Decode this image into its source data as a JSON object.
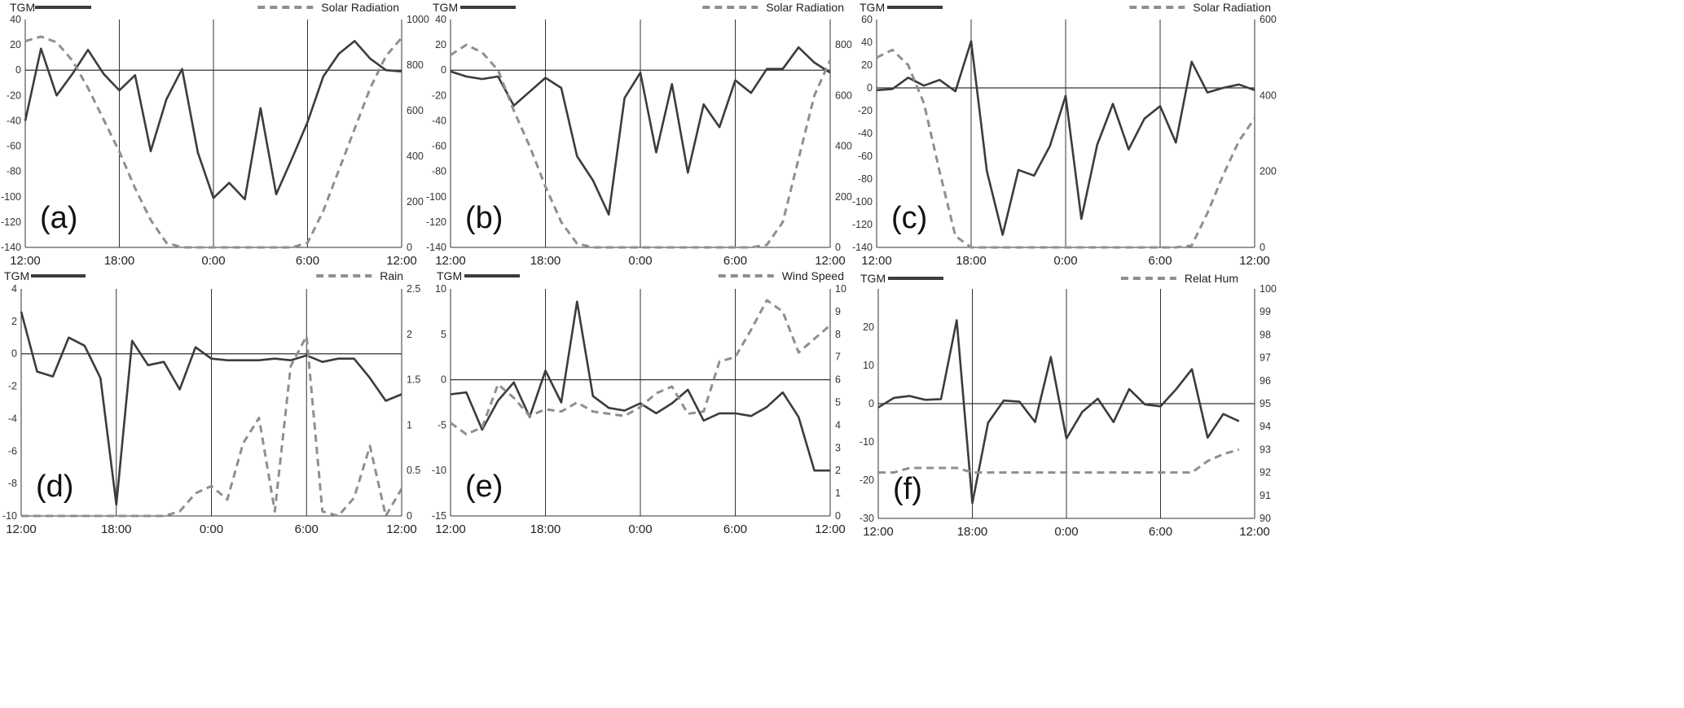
{
  "chart_data": [
    {
      "type": "line",
      "panel_label": "(a)",
      "x_ticks": [
        "12:00",
        "18:00",
        "0:00",
        "6:00",
        "12:00"
      ],
      "y_left": {
        "min": -140,
        "max": 40,
        "ticks": [
          "40",
          "20",
          "0",
          "-20",
          "-40",
          "-60",
          "-80",
          "-100",
          "-120",
          "-140"
        ]
      },
      "y_right": {
        "min": 0,
        "max": 1000,
        "ticks": [
          "1000",
          "800",
          "600",
          "400",
          "200",
          "0"
        ]
      },
      "series": [
        {
          "name": "TGM",
          "axis": "left",
          "style": "solid",
          "color": "#3c3c3c",
          "x": [
            0,
            1,
            2,
            3,
            4,
            5,
            6,
            7,
            8,
            9,
            10,
            11,
            12,
            13,
            14,
            15,
            16,
            17,
            18,
            19,
            20,
            21,
            22,
            23,
            24
          ],
          "values": [
            -40,
            17,
            -20,
            -3,
            16,
            -3,
            -16,
            -4,
            -64,
            -23,
            1,
            -65,
            -101,
            -89,
            -102,
            -30,
            -98,
            -70,
            -41,
            -5,
            13,
            23,
            9,
            0,
            -1
          ]
        },
        {
          "name": "Solar Radiation",
          "axis": "right",
          "style": "dashed",
          "color": "#8f8f8f",
          "x": [
            0,
            1,
            2,
            3,
            4,
            5,
            6,
            7,
            8,
            9,
            10,
            11,
            12,
            13,
            14,
            15,
            16,
            17,
            18,
            19,
            20,
            21,
            22,
            23,
            24
          ],
          "values": [
            905,
            925,
            900,
            820,
            700,
            560,
            420,
            260,
            120,
            20,
            0,
            0,
            0,
            0,
            0,
            0,
            0,
            0,
            20,
            160,
            340,
            520,
            700,
            840,
            920
          ]
        }
      ]
    },
    {
      "type": "line",
      "panel_label": "(b)",
      "x_ticks": [
        "12:00",
        "18:00",
        "0:00",
        "6:00",
        "12:00"
      ],
      "y_left": {
        "min": -140,
        "max": 40,
        "ticks": [
          "40",
          "20",
          "0",
          "-20",
          "-40",
          "-60",
          "-80",
          "-100",
          "-120",
          "-140"
        ]
      },
      "y_right": {
        "min": 0,
        "max": 900,
        "ticks": [
          "800",
          "600",
          "400",
          "200",
          "0"
        ]
      },
      "series": [
        {
          "name": "TGM",
          "axis": "left",
          "style": "solid",
          "color": "#3c3c3c",
          "x": [
            0,
            1,
            2,
            3,
            4,
            5,
            6,
            7,
            8,
            9,
            10,
            11,
            12,
            13,
            14,
            15,
            16,
            17,
            18,
            19,
            20,
            21,
            22,
            23,
            24
          ],
          "values": [
            -1,
            -5,
            -7,
            -5,
            -28,
            -17,
            -6,
            -14,
            -68,
            -87,
            -114,
            -22,
            -2,
            -65,
            -11,
            -81,
            -27,
            -45,
            -8,
            -18,
            1,
            1,
            18,
            6,
            -2
          ]
        },
        {
          "name": "Solar Radiation",
          "axis": "right",
          "style": "dashed",
          "color": "#8f8f8f",
          "x": [
            0,
            1,
            2,
            3,
            4,
            5,
            6,
            7,
            8,
            9,
            10,
            11,
            12,
            13,
            14,
            15,
            16,
            17,
            18,
            19,
            20,
            21,
            22,
            23,
            24
          ],
          "values": [
            760,
            800,
            770,
            700,
            540,
            400,
            240,
            100,
            15,
            0,
            0,
            0,
            0,
            0,
            0,
            0,
            0,
            0,
            0,
            0,
            10,
            100,
            350,
            600,
            740
          ]
        }
      ]
    },
    {
      "type": "line",
      "panel_label": "(c)",
      "x_ticks": [
        "12:00",
        "18:00",
        "0:00",
        "6:00",
        "12:00"
      ],
      "y_left": {
        "min": -140,
        "max": 60,
        "ticks": [
          "60",
          "40",
          "20",
          "0",
          "-20",
          "-40",
          "-60",
          "-80",
          "-100",
          "-120",
          "-140"
        ]
      },
      "y_right": {
        "min": 0,
        "max": 600,
        "ticks": [
          "600",
          "400",
          "200",
          "0"
        ]
      },
      "series": [
        {
          "name": "TGM",
          "axis": "left",
          "style": "solid",
          "color": "#3c3c3c",
          "x": [
            0,
            1,
            2,
            3,
            4,
            5,
            6,
            7,
            8,
            9,
            10,
            11,
            12,
            13,
            14,
            15,
            16,
            17,
            18,
            19,
            20,
            21,
            22,
            23,
            24
          ],
          "values": [
            -2,
            -1,
            9,
            2,
            7,
            -3,
            41,
            -73,
            -129,
            -72,
            -77,
            -51,
            -7,
            -115,
            -50,
            -14,
            -54,
            -27,
            -16,
            -48,
            23,
            -4,
            0,
            3,
            -2
          ]
        },
        {
          "name": "Solar Radiation",
          "axis": "right",
          "style": "dashed",
          "color": "#8f8f8f",
          "x": [
            0,
            1,
            2,
            3,
            4,
            5,
            6,
            7,
            8,
            9,
            10,
            11,
            12,
            13,
            14,
            15,
            16,
            17,
            18,
            19,
            20,
            21,
            22,
            23,
            24
          ],
          "values": [
            500,
            520,
            480,
            380,
            200,
            30,
            0,
            0,
            0,
            0,
            0,
            0,
            0,
            0,
            0,
            0,
            0,
            0,
            0,
            0,
            5,
            90,
            190,
            280,
            340
          ]
        }
      ]
    },
    {
      "type": "line",
      "panel_label": "(d)",
      "x_ticks": [
        "12:00",
        "18:00",
        "0:00",
        "6:00",
        "12:00"
      ],
      "y_left": {
        "min": -10,
        "max": 4,
        "ticks": [
          "4",
          "2",
          "0",
          "-2",
          "-4",
          "-6",
          "-8",
          "-10"
        ]
      },
      "y_right": {
        "min": 0,
        "max": 2.5,
        "ticks": [
          "2.5",
          "2",
          "1.5",
          "1",
          "0.5",
          "0"
        ]
      },
      "series": [
        {
          "name": "TGM",
          "axis": "left",
          "style": "solid",
          "color": "#3c3c3c",
          "x": [
            0,
            1,
            2,
            3,
            4,
            5,
            6,
            7,
            8,
            9,
            10,
            11,
            12,
            13,
            14,
            15,
            16,
            17,
            18,
            19,
            20,
            21,
            22,
            23,
            24
          ],
          "values": [
            2.6,
            -1.1,
            -1.4,
            1.0,
            0.5,
            -1.5,
            -9.3,
            0.8,
            -0.7,
            -0.5,
            -2.2,
            0.4,
            -0.3,
            -0.4,
            -0.4,
            -0.4,
            -0.3,
            -0.4,
            -0.1,
            -0.5,
            -0.3,
            -0.3,
            -1.5,
            -2.9,
            -2.5
          ]
        },
        {
          "name": "Rain",
          "axis": "right",
          "style": "dashed",
          "color": "#8f8f8f",
          "x": [
            0,
            1,
            2,
            3,
            4,
            5,
            6,
            7,
            8,
            9,
            10,
            11,
            12,
            13,
            14,
            15,
            16,
            17,
            18,
            19,
            20,
            21,
            22,
            23,
            24
          ],
          "values": [
            0,
            0,
            0,
            0,
            0,
            0,
            0,
            0,
            0,
            0,
            0.05,
            0.25,
            0.33,
            0.18,
            0.8,
            1.08,
            0.05,
            1.65,
            1.98,
            0.05,
            0,
            0.2,
            0.77,
            0,
            0.3
          ]
        }
      ]
    },
    {
      "type": "line",
      "panel_label": "(e)",
      "x_ticks": [
        "12:00",
        "18:00",
        "0:00",
        "6:00",
        "12:00"
      ],
      "y_left": {
        "min": -15,
        "max": 10,
        "ticks": [
          "10",
          "5",
          "0",
          "-5",
          "-10",
          "-15"
        ]
      },
      "y_right": {
        "min": 0,
        "max": 10,
        "ticks": [
          "10",
          "9",
          "8",
          "7",
          "6",
          "5",
          "4",
          "3",
          "2",
          "1",
          "0"
        ]
      },
      "series": [
        {
          "name": "TGM",
          "axis": "left",
          "style": "solid",
          "color": "#3c3c3c",
          "x": [
            0,
            1,
            2,
            3,
            4,
            5,
            6,
            7,
            8,
            9,
            10,
            11,
            12,
            13,
            14,
            15,
            16,
            17,
            18,
            19,
            20,
            21,
            22,
            23,
            24
          ],
          "values": [
            -1.6,
            -1.4,
            -5.5,
            -2.3,
            -0.3,
            -4.1,
            1.0,
            -2.5,
            8.6,
            -1.8,
            -3.1,
            -3.4,
            -2.6,
            -3.7,
            -2.6,
            -1.1,
            -4.5,
            -3.7,
            -3.7,
            -4.0,
            -3.0,
            -1.4,
            -4.1,
            -10.0,
            -10.0
          ]
        },
        {
          "name": "Wind Speed",
          "axis": "right",
          "style": "dashed",
          "color": "#8f8f8f",
          "x": [
            0,
            1,
            2,
            3,
            4,
            5,
            6,
            7,
            8,
            9,
            10,
            11,
            12,
            13,
            14,
            15,
            16,
            17,
            18,
            19,
            20,
            21,
            22,
            23,
            24
          ],
          "values": [
            4.1,
            3.6,
            3.9,
            5.8,
            5.2,
            4.4,
            4.7,
            4.6,
            5.0,
            4.6,
            4.5,
            4.4,
            4.8,
            5.4,
            5.7,
            4.5,
            4.6,
            6.8,
            7.0,
            8.2,
            9.5,
            9.0,
            7.2,
            7.8,
            8.4
          ]
        }
      ]
    },
    {
      "type": "line",
      "panel_label": "(f)",
      "x_ticks": [
        "12:00",
        "18:00",
        "0:00",
        "6:00",
        "12:00"
      ],
      "y_left": {
        "min": -30,
        "max": 30,
        "ticks": [
          "20",
          "10",
          "0",
          "-10",
          "-20",
          "-30"
        ]
      },
      "y_right": {
        "min": 90,
        "max": 100,
        "ticks": [
          "100",
          "99",
          "98",
          "97",
          "96",
          "95",
          "94",
          "93",
          "92",
          "91",
          "90"
        ]
      },
      "series": [
        {
          "name": "TGM",
          "axis": "left",
          "style": "solid",
          "color": "#3c3c3c",
          "x": [
            0,
            1,
            2,
            3,
            4,
            5,
            6,
            7,
            8,
            9,
            10,
            11,
            12,
            13,
            14,
            15,
            16,
            17,
            18,
            19,
            20,
            21,
            22,
            23
          ],
          "values": [
            -1,
            1.5,
            2,
            1,
            1.2,
            21.8,
            -26,
            -5,
            0.8,
            0.5,
            -4.8,
            12.2,
            -9.1,
            -2.2,
            1.3,
            -4.8,
            3.8,
            -0.2,
            -0.7,
            3.8,
            9,
            -8.9,
            -2.7,
            -4.6
          ]
        },
        {
          "name": "Relat Hum",
          "axis": "right",
          "style": "dashed",
          "color": "#8f8f8f",
          "x": [
            0,
            1,
            2,
            3,
            4,
            5,
            6,
            7,
            8,
            9,
            10,
            11,
            12,
            13,
            14,
            15,
            16,
            17,
            18,
            19,
            20,
            21,
            22,
            23
          ],
          "values": [
            92,
            92,
            92.2,
            92.2,
            92.2,
            92.2,
            92,
            92,
            92,
            92,
            92,
            92,
            92,
            92,
            92,
            92,
            92,
            92,
            92,
            92,
            92,
            92.5,
            92.8,
            93
          ]
        }
      ]
    }
  ]
}
